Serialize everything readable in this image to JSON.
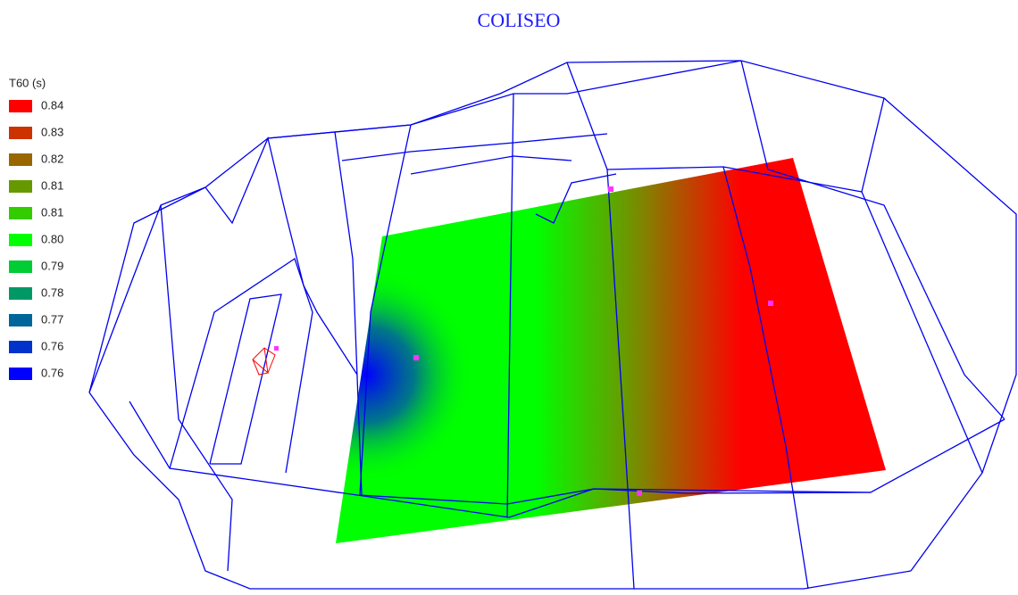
{
  "header": {
    "title": "COLISEO"
  },
  "legend": {
    "title": "T60 (s)",
    "items": [
      {
        "label": "0.84",
        "color": "#ff0000"
      },
      {
        "label": "0.83",
        "color": "#cc3300"
      },
      {
        "label": "0.82",
        "color": "#996600"
      },
      {
        "label": "0.81",
        "color": "#669900"
      },
      {
        "label": "0.81",
        "color": "#33cc00"
      },
      {
        "label": "0.80",
        "color": "#00ff00"
      },
      {
        "label": "0.79",
        "color": "#00cc33"
      },
      {
        "label": "0.78",
        "color": "#009966"
      },
      {
        "label": "0.77",
        "color": "#006699"
      },
      {
        "label": "0.76",
        "color": "#0033cc"
      },
      {
        "label": "0.76",
        "color": "#0000ff"
      }
    ]
  }
}
